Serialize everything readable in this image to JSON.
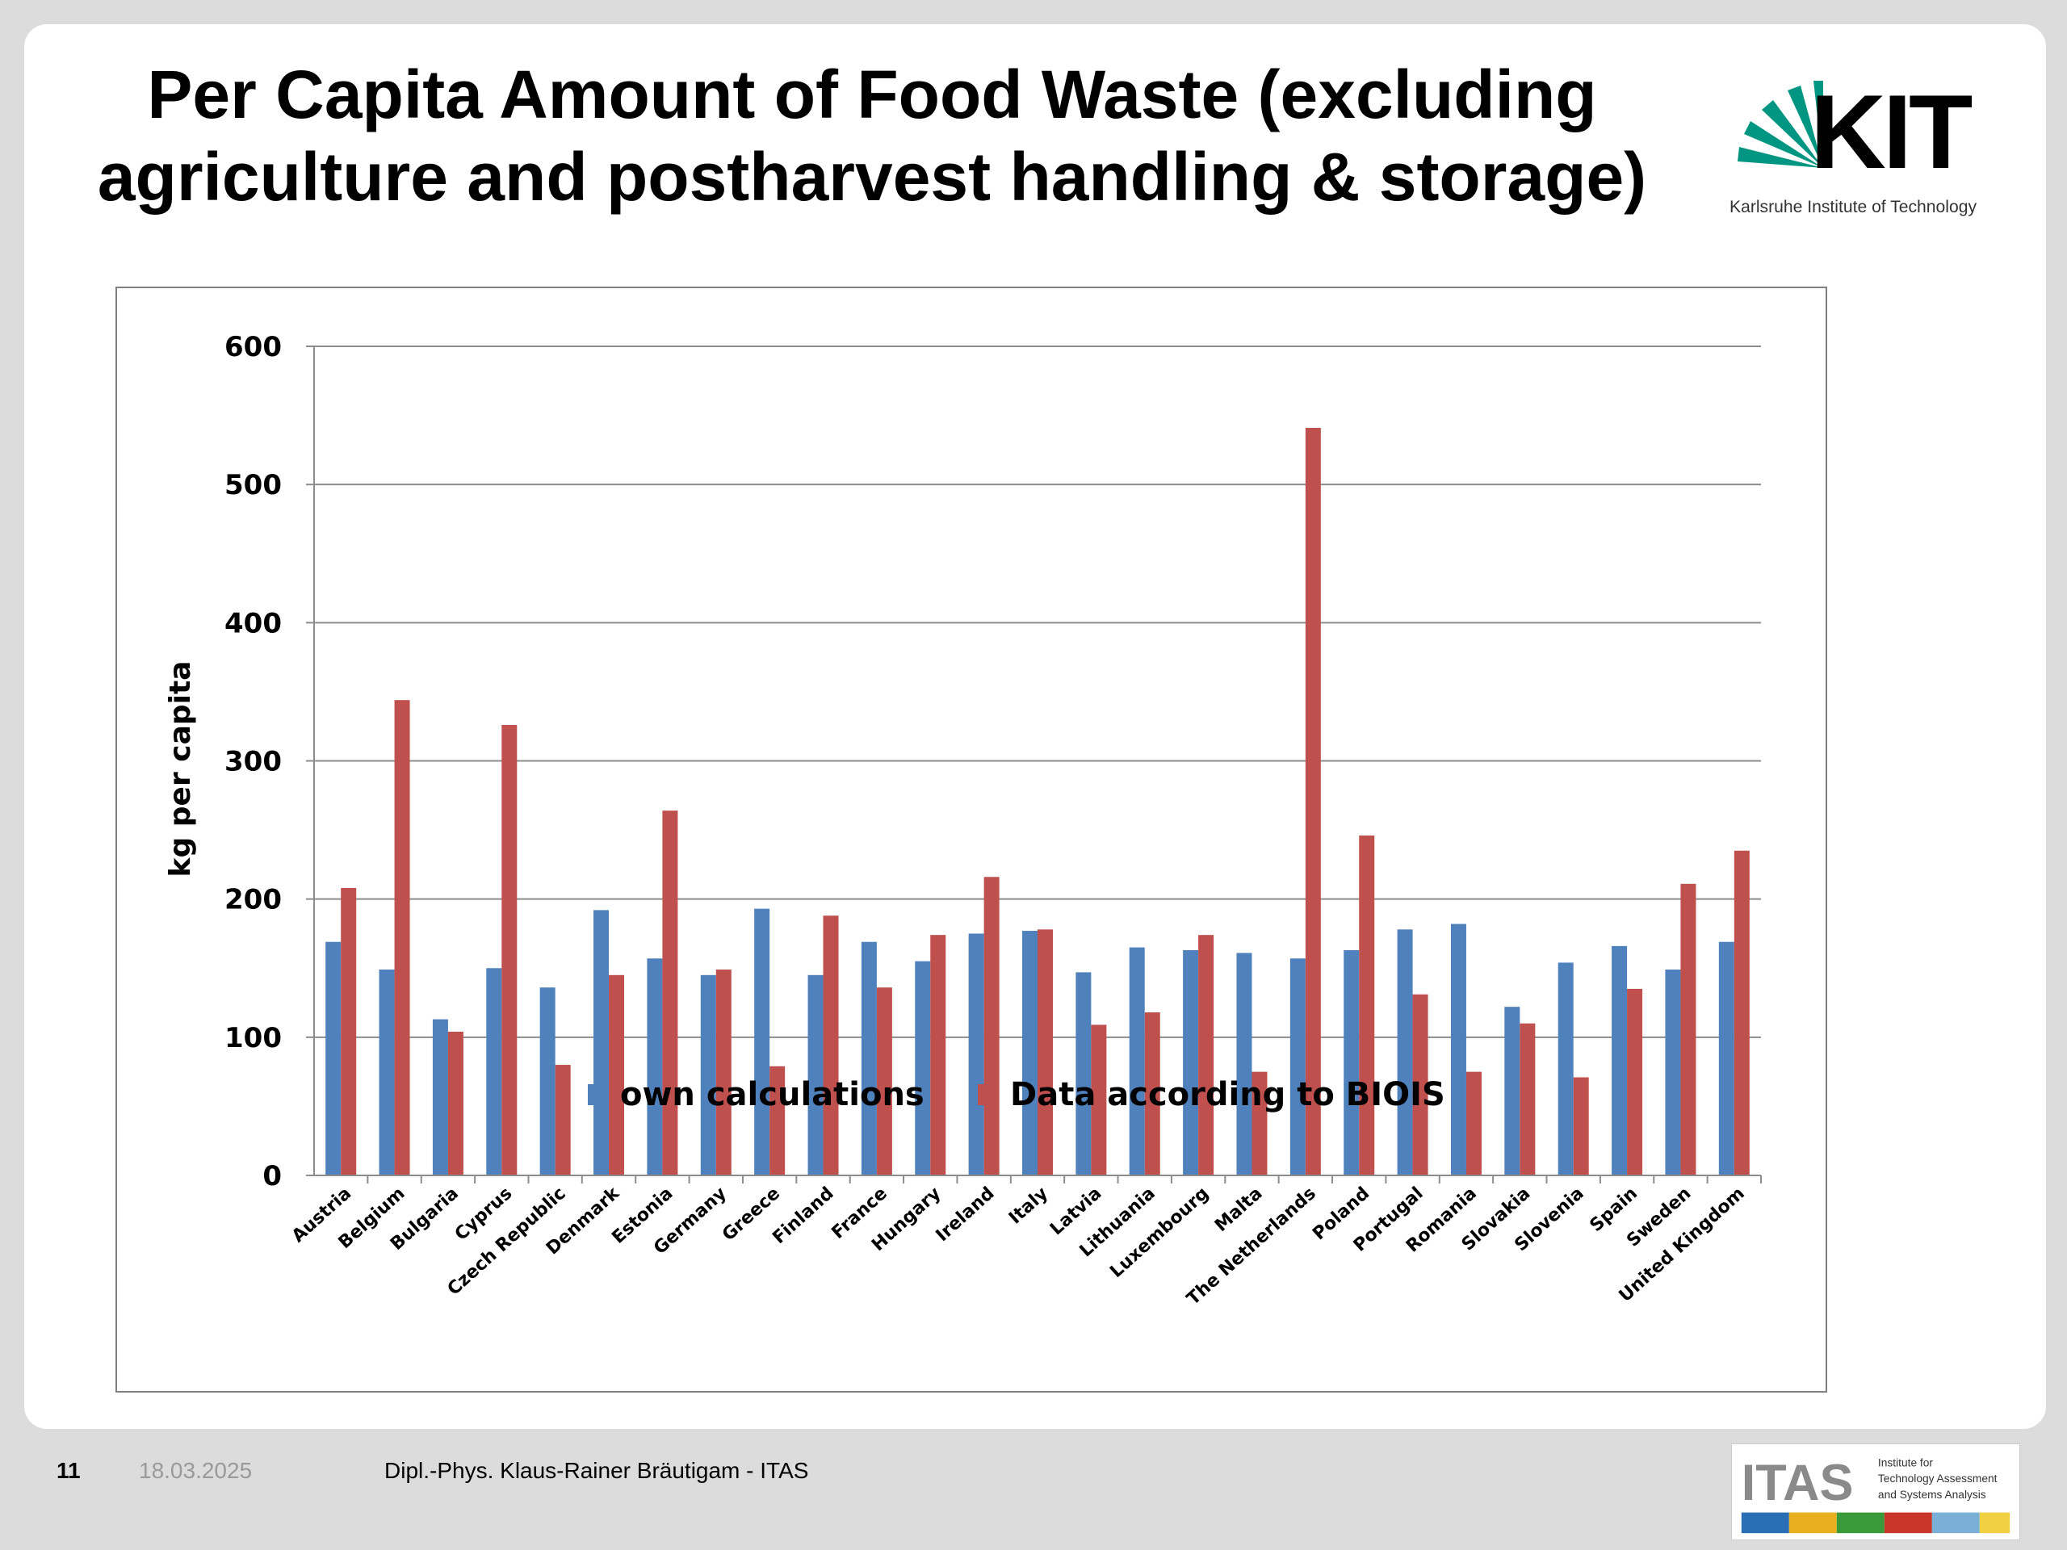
{
  "slide": {
    "title_line1": "Per Capita Amount of Food Waste (excluding",
    "title_line2": "agriculture and postharvest handling & storage)"
  },
  "logos": {
    "kit_text": "KIT",
    "kit_subtitle": "Karlsruhe Institute of Technology",
    "itas_text": "ITAS",
    "itas_sub1": "Institute for",
    "itas_sub2": "Technology Assessment",
    "itas_sub3": "and Systems Analysis"
  },
  "footer": {
    "page_number": "11",
    "date": "18.03.2025",
    "author": "Dipl.-Phys. Klaus-Rainer Bräutigam - ITAS"
  },
  "colors": {
    "own": "#4f81bd",
    "biois": "#c0504d",
    "kit_green": "#009682"
  },
  "chart_data": {
    "type": "bar",
    "title": "",
    "xlabel": "",
    "ylabel": "kg per capita",
    "ylim": [
      0,
      600
    ],
    "yticks": [
      0,
      100,
      200,
      300,
      400,
      500,
      600
    ],
    "grid": true,
    "legend_position": "bottom",
    "categories": [
      "Austria",
      "Belgium",
      "Bulgaria",
      "Cyprus",
      "Czech Republic",
      "Denmark",
      "Estonia",
      "Germany",
      "Greece",
      "Finland",
      "France",
      "Hungary",
      "Ireland",
      "Italy",
      "Latvia",
      "Lithuania",
      "Luxembourg",
      "Malta",
      "The Netherlands",
      "Poland",
      "Portugal",
      "Romania",
      "Slovakia",
      "Slovenia",
      "Spain",
      "Sweden",
      "United Kingdom"
    ],
    "series": [
      {
        "name": "own calculations",
        "color": "#4f81bd",
        "values": [
          169,
          149,
          113,
          150,
          136,
          192,
          157,
          145,
          193,
          145,
          169,
          155,
          175,
          177,
          147,
          165,
          163,
          161,
          157,
          163,
          178,
          182,
          122,
          154,
          166,
          149,
          169
        ]
      },
      {
        "name": "Data according to BIOIS",
        "color": "#c0504d",
        "values": [
          208,
          344,
          104,
          326,
          80,
          145,
          264,
          149,
          79,
          188,
          136,
          174,
          216,
          178,
          109,
          118,
          174,
          75,
          541,
          246,
          131,
          75,
          110,
          71,
          135,
          211,
          235
        ]
      }
    ]
  }
}
